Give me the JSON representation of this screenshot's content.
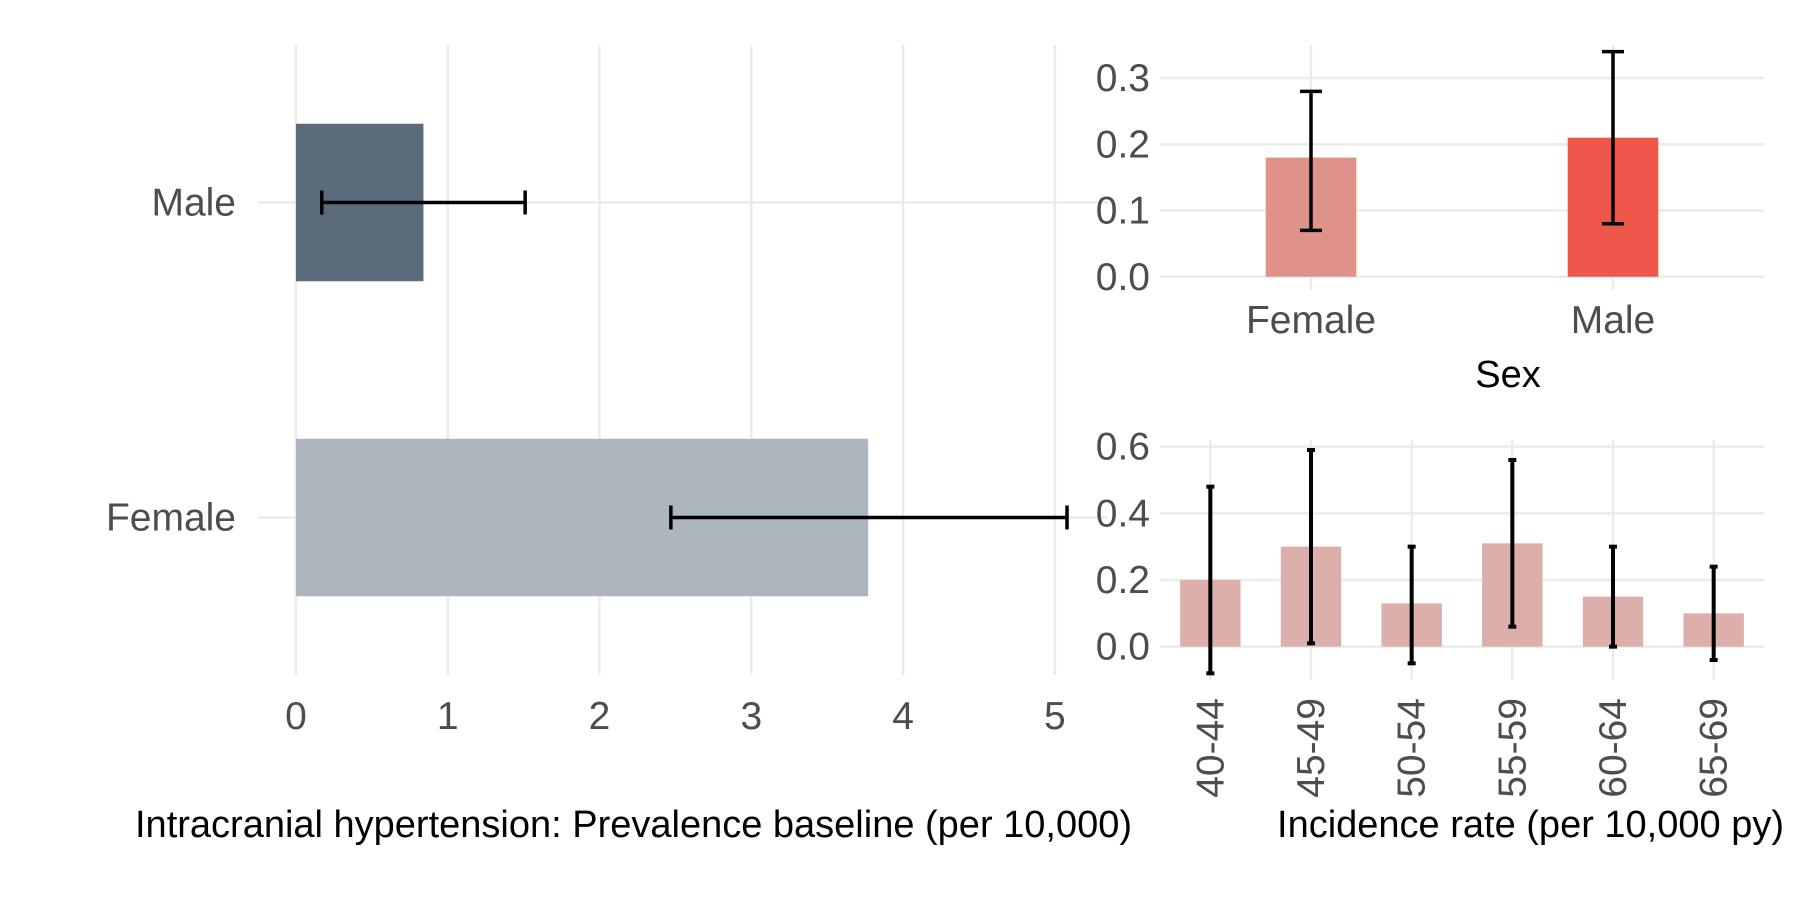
{
  "chart_data": [
    {
      "id": "prevalence",
      "type": "bar",
      "orientation": "horizontal",
      "categories": [
        "Male",
        "Female"
      ],
      "values": [
        0.84,
        3.77
      ],
      "ci_lower": [
        0.17,
        2.47
      ],
      "ci_upper": [
        1.51,
        5.08
      ],
      "colors": [
        "#5b6b7b",
        "#adb5bf"
      ],
      "xlim": [
        -0.25,
        5.35
      ],
      "xticks": [
        "0",
        "1",
        "2",
        "3",
        "4",
        "5"
      ],
      "xlabel": "Intracranial hypertension: Prevalence baseline (per 10,000)",
      "grid": true
    },
    {
      "id": "incidence_sex",
      "type": "bar",
      "categories": [
        "Female",
        "Male"
      ],
      "values": [
        0.18,
        0.21
      ],
      "ci_lower": [
        0.07,
        0.08
      ],
      "ci_upper": [
        0.28,
        0.34
      ],
      "colors": [
        "#de928a",
        "#ec574a"
      ],
      "ylim": [
        -0.02,
        0.35
      ],
      "yticks": [
        "0.0",
        "0.1",
        "0.2",
        "0.3"
      ],
      "xlabel": "Sex",
      "grid": true
    },
    {
      "id": "incidence_age",
      "type": "bar",
      "categories": [
        "40-44",
        "45-49",
        "50-54",
        "55-59",
        "60-64",
        "65-69"
      ],
      "values": [
        0.2,
        0.3,
        0.13,
        0.31,
        0.15,
        0.1
      ],
      "ci_lower": [
        -0.08,
        0.01,
        -0.05,
        0.06,
        0.0,
        -0.04
      ],
      "ci_upper": [
        0.48,
        0.59,
        0.3,
        0.56,
        0.3,
        0.24
      ],
      "colors": [
        "#dcafab"
      ],
      "ylim": [
        -0.1,
        0.62
      ],
      "yticks": [
        "0.0",
        "0.2",
        "0.4",
        "0.6"
      ],
      "xlabel": "Incidence rate (per 10,000 py)",
      "grid": true
    }
  ]
}
